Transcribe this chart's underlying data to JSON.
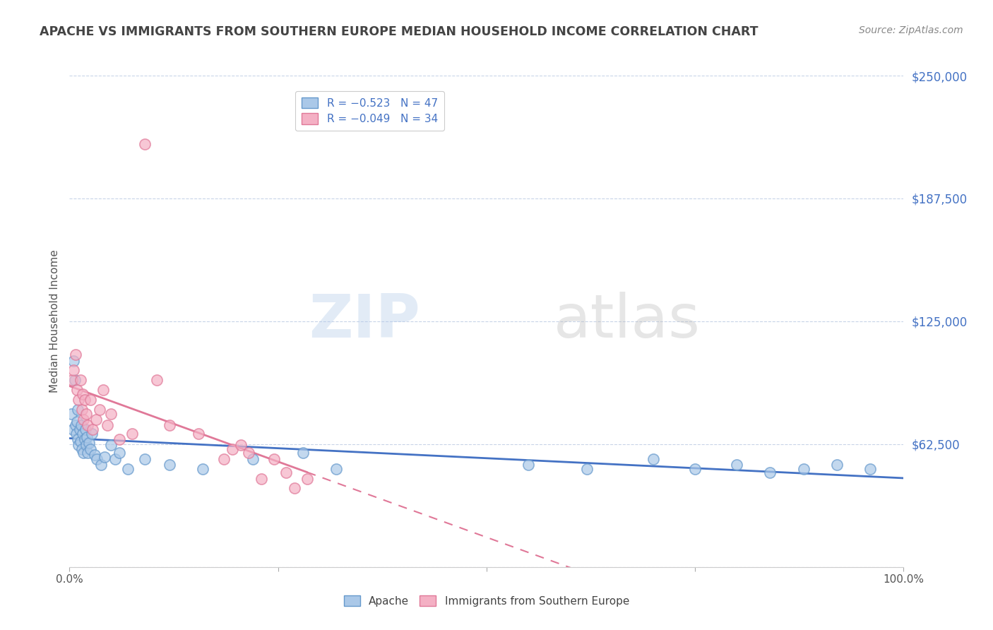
{
  "title": "APACHE VS IMMIGRANTS FROM SOUTHERN EUROPE MEDIAN HOUSEHOLD INCOME CORRELATION CHART",
  "source": "Source: ZipAtlas.com",
  "ylabel": "Median Household Income",
  "xlim": [
    0,
    1
  ],
  "ylim": [
    0,
    250000
  ],
  "yticks": [
    0,
    62500,
    125000,
    187500,
    250000
  ],
  "ytick_labels": [
    "",
    "$62,500",
    "$125,000",
    "$187,500",
    "$250,000"
  ],
  "legend_r_apache": "R = −0.523   N = 47",
  "legend_r_southern": "R = −0.049   N = 34",
  "watermark": "ZIPatlas",
  "apache_color": "#aac8e8",
  "apache_edge": "#6699cc",
  "southern_color": "#f4b0c4",
  "southern_edge": "#e07898",
  "title_color": "#444444",
  "source_color": "#888888",
  "axis_label_color": "#555555",
  "ytick_color": "#4472c4",
  "grid_color": "#c8d4e8",
  "trend_blue_color": "#4472c4",
  "trend_pink_color": "#e07898",
  "background_color": "#ffffff",
  "apache_x": [
    0.002,
    0.004,
    0.005,
    0.006,
    0.007,
    0.008,
    0.009,
    0.01,
    0.01,
    0.011,
    0.012,
    0.013,
    0.014,
    0.015,
    0.016,
    0.017,
    0.018,
    0.019,
    0.02,
    0.021,
    0.022,
    0.023,
    0.025,
    0.027,
    0.03,
    0.033,
    0.038,
    0.042,
    0.05,
    0.055,
    0.06,
    0.07,
    0.09,
    0.12,
    0.16,
    0.22,
    0.28,
    0.32,
    0.55,
    0.62,
    0.7,
    0.75,
    0.8,
    0.84,
    0.88,
    0.92,
    0.96
  ],
  "apache_y": [
    78000,
    70000,
    105000,
    95000,
    72000,
    68000,
    74000,
    65000,
    80000,
    62000,
    70000,
    64000,
    72000,
    60000,
    68000,
    58000,
    65000,
    70000,
    62000,
    66000,
    58000,
    63000,
    60000,
    68000,
    57000,
    55000,
    52000,
    56000,
    62000,
    55000,
    58000,
    50000,
    55000,
    52000,
    50000,
    55000,
    58000,
    50000,
    52000,
    50000,
    55000,
    50000,
    52000,
    48000,
    50000,
    52000,
    50000
  ],
  "southern_x": [
    0.003,
    0.005,
    0.007,
    0.009,
    0.011,
    0.013,
    0.015,
    0.016,
    0.017,
    0.018,
    0.02,
    0.022,
    0.025,
    0.028,
    0.032,
    0.036,
    0.04,
    0.045,
    0.05,
    0.06,
    0.075,
    0.09,
    0.105,
    0.12,
    0.155,
    0.185,
    0.195,
    0.205,
    0.215,
    0.23,
    0.245,
    0.26,
    0.27,
    0.285
  ],
  "southern_y": [
    95000,
    100000,
    108000,
    90000,
    85000,
    95000,
    80000,
    88000,
    75000,
    85000,
    78000,
    72000,
    85000,
    70000,
    75000,
    80000,
    90000,
    72000,
    78000,
    65000,
    68000,
    215000,
    95000,
    72000,
    68000,
    55000,
    60000,
    62000,
    58000,
    45000,
    55000,
    48000,
    40000,
    45000
  ]
}
